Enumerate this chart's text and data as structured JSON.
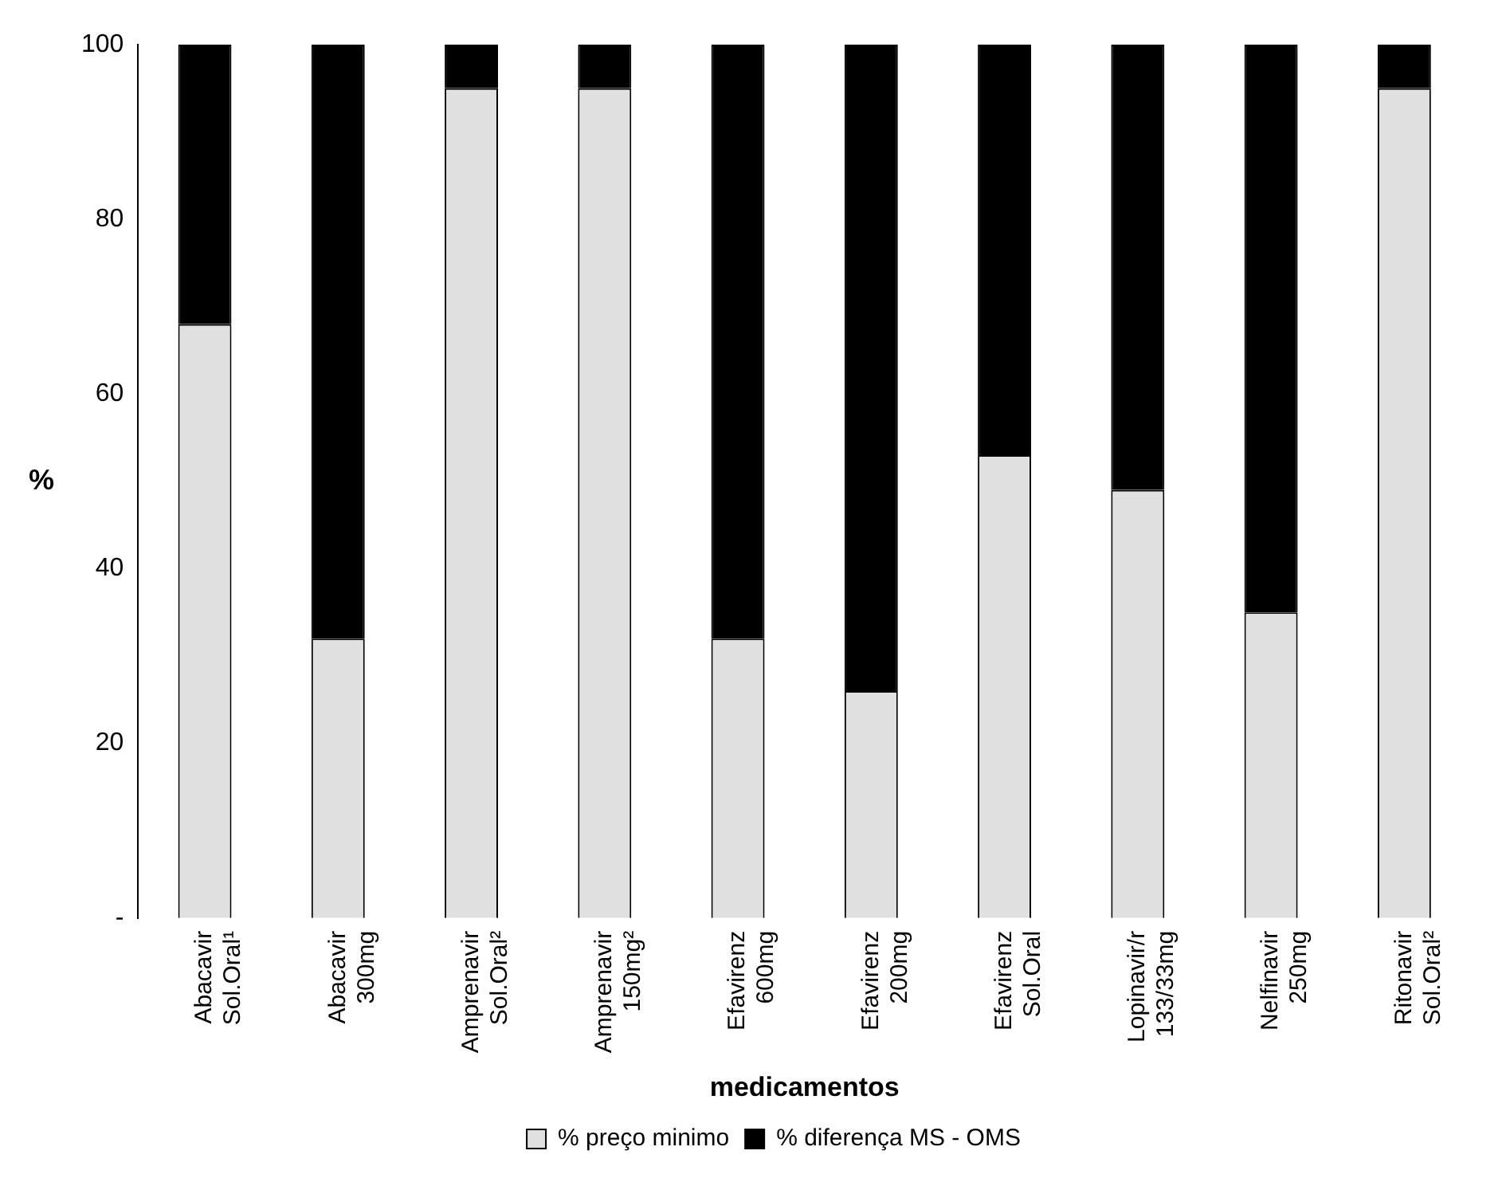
{
  "chart_data": {
    "type": "bar",
    "stacked": true,
    "xlabel": "medicamentos",
    "ylabel": "%",
    "categories": [
      "Abacavir\nSol.Oral¹",
      "Abacavir\n300mg",
      "Amprenavir\nSol.Oral²",
      "Amprenavir\n150mg²",
      "Efavirenz\n600mg",
      "Efavirenz\n200mg",
      "Efavirenz\nSol.Oral",
      "Lopinavir/r\n133/33mg",
      "Nelfinavir\n250mg",
      "Ritonavir\nSol.Oral²"
    ],
    "series": [
      {
        "name": "% preço minimo",
        "color": "#e0e0e0",
        "values": [
          68,
          32,
          95,
          95,
          32,
          26,
          53,
          49,
          35,
          95
        ]
      },
      {
        "name": "% diferença MS - OMS",
        "color": "#000000",
        "values": [
          32,
          68,
          5,
          5,
          68,
          74,
          47,
          51,
          65,
          5
        ]
      }
    ],
    "ylim": [
      0,
      100
    ],
    "yticks": [
      {
        "value": 0,
        "label": "-"
      },
      20,
      40,
      60,
      80,
      100
    ],
    "grid": false,
    "legend": "bottom"
  }
}
